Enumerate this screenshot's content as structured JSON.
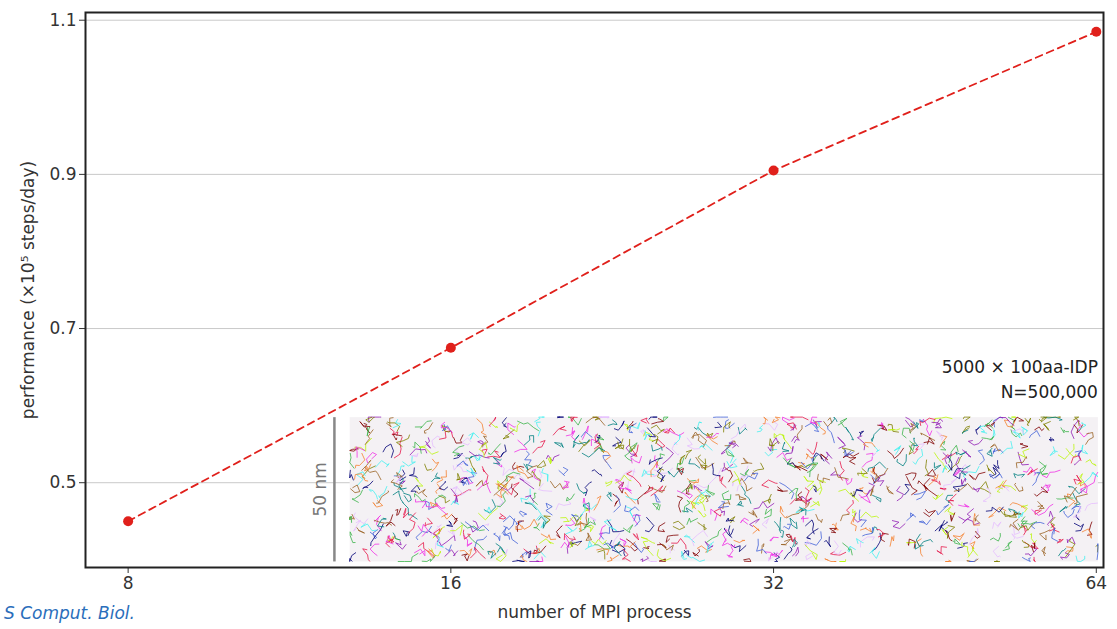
{
  "chart_data": {
    "type": "line",
    "x_label": "number of MPI process",
    "y_label": "performance (×10⁵ steps/day)",
    "x": [
      8,
      16,
      32,
      64
    ],
    "values": [
      0.45,
      0.675,
      0.905,
      1.085
    ],
    "color": "#e0201b",
    "marker": "circle",
    "line_style": "dashed",
    "log": "x",
    "xlim": [
      7.3,
      65
    ],
    "ylim": [
      0.39,
      1.11
    ],
    "xticks": [
      8,
      16,
      32,
      64
    ],
    "yticks": [
      0.5,
      0.7,
      0.9,
      1.1
    ],
    "grid": true,
    "annotations": [
      "5000 × 100aa-IDP",
      "N=500,000",
      "50 nm"
    ],
    "caption": "S Comput. Biol."
  }
}
